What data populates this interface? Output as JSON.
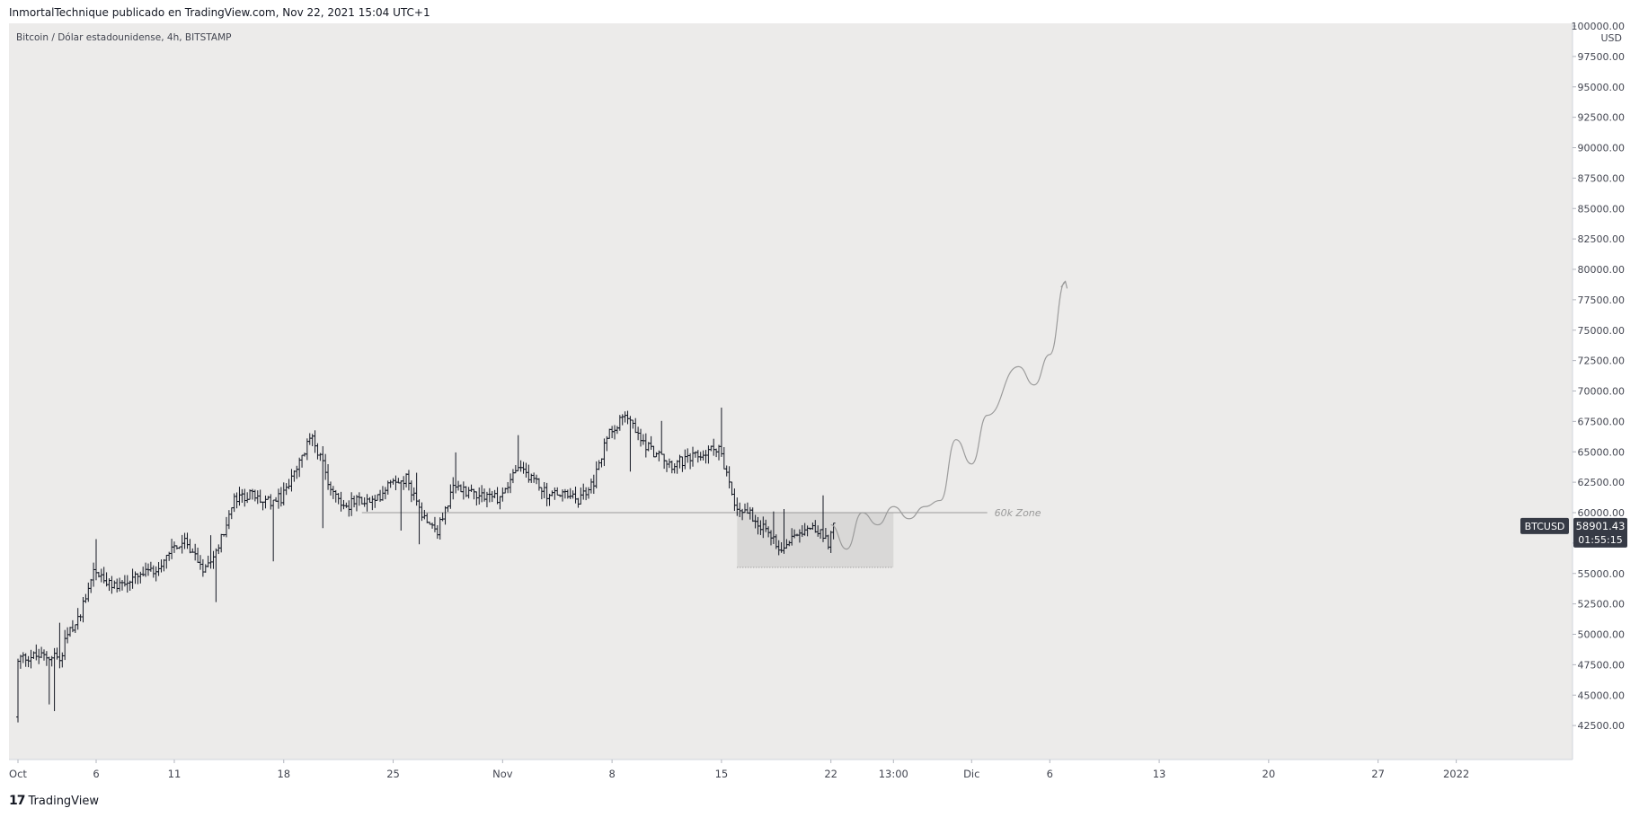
{
  "header": {
    "publisher_line": "InmortalTechnique publicado en TradingView.com, Nov 22, 2021 15:04 UTC+1",
    "symbol_description": "Bitcoin / Dólar estadounidense, 4h, BITSTAMP"
  },
  "footer": {
    "logo_mark": "17",
    "logo_text": "TradingView"
  },
  "colors": {
    "background": "#ecebea",
    "bar": "#131722",
    "zone_line": "#9a9a9a",
    "projection": "#9b9b9b",
    "zone_box": "#d9d8d7",
    "price_tag": "#363a45"
  },
  "chart_data": {
    "type": "line",
    "series_style": "ohlc-bars-4h",
    "y_axis": {
      "unit_label": "USD",
      "range": [
        40000,
        100000
      ],
      "tick_labels": [
        "100000.00",
        "97500.00",
        "95000.00",
        "92500.00",
        "90000.00",
        "87500.00",
        "85000.00",
        "82500.00",
        "80000.00",
        "77500.00",
        "75000.00",
        "72500.00",
        "70000.00",
        "67500.00",
        "65000.00",
        "62500.00",
        "60000.00",
        "57500.00",
        "55000.00",
        "52500.00",
        "50000.00",
        "47500.00",
        "45000.00",
        "42500.00"
      ]
    },
    "x_axis": {
      "range_days": [
        "2021-10-01",
        "2022-01-07"
      ],
      "ticks": [
        {
          "label": "Oct",
          "date": "2021-10-01"
        },
        {
          "label": "6",
          "date": "2021-10-06"
        },
        {
          "label": "11",
          "date": "2021-10-11"
        },
        {
          "label": "18",
          "date": "2021-10-18"
        },
        {
          "label": "25",
          "date": "2021-10-25"
        },
        {
          "label": "Nov",
          "date": "2021-11-01"
        },
        {
          "label": "8",
          "date": "2021-11-08"
        },
        {
          "label": "15",
          "date": "2021-11-15"
        },
        {
          "label": "22",
          "date": "2021-11-22"
        },
        {
          "label": "13:00",
          "date": "2021-11-26"
        },
        {
          "label": "Dic",
          "date": "2021-12-01"
        },
        {
          "label": "6",
          "date": "2021-12-06"
        },
        {
          "label": "13",
          "date": "2021-12-13"
        },
        {
          "label": "20",
          "date": "2021-12-20"
        },
        {
          "label": "27",
          "date": "2021-12-27"
        },
        {
          "label": "2022",
          "date": "2022-01-01"
        }
      ]
    },
    "price_path": [
      {
        "date": "2021-10-01",
        "price": 43200
      },
      {
        "date": "2021-10-01",
        "price": 48000
      },
      {
        "date": "2021-10-02",
        "price": 48200
      },
      {
        "date": "2021-10-04",
        "price": 48100
      },
      {
        "date": "2021-10-04",
        "price": 49500
      },
      {
        "date": "2021-10-05",
        "price": 51200
      },
      {
        "date": "2021-10-06",
        "price": 55300
      },
      {
        "date": "2021-10-07",
        "price": 54000
      },
      {
        "date": "2021-10-08",
        "price": 54200
      },
      {
        "date": "2021-10-09",
        "price": 54800
      },
      {
        "date": "2021-10-10",
        "price": 55300
      },
      {
        "date": "2021-10-11",
        "price": 57200
      },
      {
        "date": "2021-10-12",
        "price": 57500
      },
      {
        "date": "2021-10-13",
        "price": 55500
      },
      {
        "date": "2021-10-14",
        "price": 57200
      },
      {
        "date": "2021-10-15",
        "price": 61000
      },
      {
        "date": "2021-10-16",
        "price": 61500
      },
      {
        "date": "2021-10-17",
        "price": 60800
      },
      {
        "date": "2021-10-18",
        "price": 61200
      },
      {
        "date": "2021-10-19",
        "price": 63500
      },
      {
        "date": "2021-10-20",
        "price": 66500
      },
      {
        "date": "2021-10-21",
        "price": 62500
      },
      {
        "date": "2021-10-22",
        "price": 60500
      },
      {
        "date": "2021-10-23",
        "price": 61000
      },
      {
        "date": "2021-10-24",
        "price": 60800
      },
      {
        "date": "2021-10-25",
        "price": 62800
      },
      {
        "date": "2021-10-26",
        "price": 62800
      },
      {
        "date": "2021-10-27",
        "price": 60000
      },
      {
        "date": "2021-10-28",
        "price": 58500
      },
      {
        "date": "2021-10-29",
        "price": 62000
      },
      {
        "date": "2021-10-30",
        "price": 61800
      },
      {
        "date": "2021-10-31",
        "price": 61500
      },
      {
        "date": "2021-11-01",
        "price": 61200
      },
      {
        "date": "2021-11-02",
        "price": 63500
      },
      {
        "date": "2021-11-03",
        "price": 63000
      },
      {
        "date": "2021-11-04",
        "price": 61500
      },
      {
        "date": "2021-11-05",
        "price": 61500
      },
      {
        "date": "2021-11-06",
        "price": 61000
      },
      {
        "date": "2021-11-07",
        "price": 62500
      },
      {
        "date": "2021-11-08",
        "price": 66800
      },
      {
        "date": "2021-11-09",
        "price": 68000
      },
      {
        "date": "2021-11-10",
        "price": 66000
      },
      {
        "date": "2021-11-11",
        "price": 64800
      },
      {
        "date": "2021-11-12",
        "price": 64000
      },
      {
        "date": "2021-11-13",
        "price": 64300
      },
      {
        "date": "2021-11-14",
        "price": 64800
      },
      {
        "date": "2021-11-15",
        "price": 65500
      },
      {
        "date": "2021-11-16",
        "price": 60500
      },
      {
        "date": "2021-11-17",
        "price": 60000
      },
      {
        "date": "2021-11-18",
        "price": 58500
      },
      {
        "date": "2021-11-19",
        "price": 57000
      },
      {
        "date": "2021-11-20",
        "price": 58500
      },
      {
        "date": "2021-11-21",
        "price": 59000
      },
      {
        "date": "2021-11-22",
        "price": 57500
      },
      {
        "date": "2021-11-22",
        "price": 58900
      }
    ],
    "projection_path": [
      {
        "date": "2021-11-22",
        "price": 59000
      },
      {
        "date": "2021-11-23",
        "price": 57000
      },
      {
        "date": "2021-11-24",
        "price": 60000
      },
      {
        "date": "2021-11-25",
        "price": 59000
      },
      {
        "date": "2021-11-26",
        "price": 60500
      },
      {
        "date": "2021-11-27",
        "price": 59500
      },
      {
        "date": "2021-11-28",
        "price": 60500
      },
      {
        "date": "2021-11-29",
        "price": 61000
      },
      {
        "date": "2021-11-30",
        "price": 66000
      },
      {
        "date": "2021-12-01",
        "price": 64000
      },
      {
        "date": "2021-12-02",
        "price": 68000
      },
      {
        "date": "2021-12-04",
        "price": 72000
      },
      {
        "date": "2021-12-05",
        "price": 70500
      },
      {
        "date": "2021-12-06",
        "price": 73000
      },
      {
        "date": "2021-12-07",
        "price": 79000
      }
    ],
    "annotations": [
      {
        "type": "horizontal_line",
        "label": "60k Zone",
        "price": 60000,
        "from": "2021-10-23",
        "to": "2021-12-02"
      },
      {
        "type": "rectangle",
        "from": "2021-11-16",
        "to": "2021-11-26",
        "price_top": 60000,
        "price_bottom": 55500
      }
    ],
    "last_price": {
      "symbol": "BTCUSD",
      "price": 58901.43,
      "price_label": "58901.43",
      "countdown": "01:55:15"
    }
  }
}
